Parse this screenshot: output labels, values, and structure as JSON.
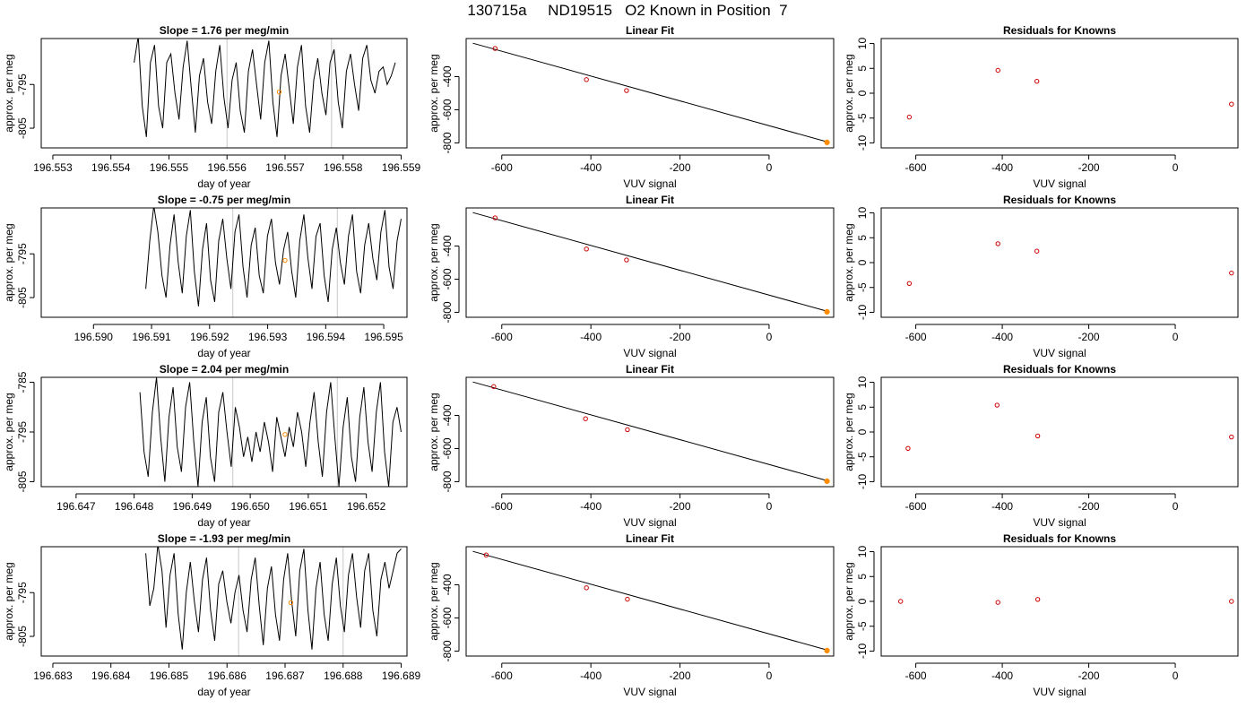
{
  "figure_title": "130715a     ND19515   O2 Known in Position  7",
  "colors": {
    "line": "#000000",
    "gridline": "#c8c8c8",
    "highlight": "#ff8c00",
    "known_points": "#cc0000",
    "axis": "#000000"
  },
  "chart_data": [
    {
      "type": "line",
      "title": "Slope =  1.76  per meg/min",
      "xlabel": "day of year",
      "ylabel": "approx. per meg",
      "xlim": [
        196.5528,
        196.5591
      ],
      "ylim": [
        -809.5,
        -784.5
      ],
      "xticks": [
        196.553,
        196.554,
        196.555,
        196.556,
        196.557,
        196.558,
        196.559
      ],
      "xtick_labels": [
        "196.553",
        "196.554",
        "196.555",
        "196.556",
        "196.557",
        "196.558",
        "196.559"
      ],
      "yticks": [
        -795,
        -805
      ],
      "ytick_labels": [
        "-795",
        "-805"
      ],
      "vlines": [
        196.556,
        196.5578
      ],
      "x_start": 196.5544,
      "x_end": 196.5589,
      "y": [
        -790,
        -784,
        -800,
        -807,
        -790,
        -786,
        -800,
        -805,
        -790,
        -788,
        -797,
        -803,
        -791,
        -785,
        -796,
        -806,
        -793,
        -789,
        -799,
        -804,
        -792,
        -786,
        -798,
        -805,
        -794,
        -790,
        -801,
        -806,
        -792,
        -787,
        -795,
        -803,
        -790,
        -785,
        -799,
        -807,
        -793,
        -788,
        -796,
        -804,
        -791,
        -786,
        -800,
        -806,
        -794,
        -789,
        -797,
        -802,
        -790,
        -787,
        -799,
        -805,
        -792,
        -788,
        -795,
        -801,
        -789,
        -786,
        -794,
        -797,
        -792,
        -791,
        -795,
        -793,
        -790
      ],
      "highlight_point": {
        "x": 196.5569,
        "y": -796.7
      }
    },
    {
      "type": "scatter",
      "title": "Linear Fit",
      "xlabel": "VUV signal",
      "ylabel": "approx. per meg",
      "xlim": [
        -680,
        145
      ],
      "ylim": [
        -830,
        -170
      ],
      "xticks": [
        -600,
        -400,
        -200,
        0
      ],
      "xtick_labels": [
        "-600",
        "-400",
        "-200",
        "0"
      ],
      "yticks": [
        -400,
        -600,
        -800
      ],
      "ytick_labels": [
        "-400",
        "-600",
        "-800"
      ],
      "fit_line": {
        "x": [
          -665,
          132
        ],
        "y": [
          -198,
          -795
        ]
      },
      "points": {
        "x": [
          -615,
          -410,
          -320,
          130
        ],
        "y": [
          -230,
          -418,
          -484,
          -797
        ]
      },
      "highlight_point": {
        "x": 130,
        "y": -797
      }
    },
    {
      "type": "scatter",
      "title": "Residuals for Knowns",
      "xlabel": "VUV signal",
      "ylabel": "approx. per meg",
      "xlim": [
        -680,
        145
      ],
      "ylim": [
        -11,
        11
      ],
      "xticks": [
        -600,
        -400,
        -200,
        0
      ],
      "xtick_labels": [
        "-600",
        "-400",
        "-200",
        "0"
      ],
      "yticks": [
        10,
        5,
        0,
        -5,
        -10
      ],
      "ytick_labels": [
        "10",
        "5",
        "0",
        "-5",
        "-10"
      ],
      "points": {
        "x": [
          -615,
          -410,
          -320,
          130
        ],
        "y": [
          -4.8,
          4.6,
          2.4,
          -2.2
        ]
      }
    },
    {
      "type": "line",
      "title": "Slope =  -0.75  per meg/min",
      "xlabel": "day of year",
      "ylabel": "approx. per meg",
      "xlim": [
        196.5891,
        196.5954
      ],
      "ylim": [
        -809.5,
        -784.5
      ],
      "xticks": [
        196.59,
        196.591,
        196.592,
        196.593,
        196.594,
        196.595
      ],
      "xtick_labels": [
        "196.590",
        "196.591",
        "196.592",
        "196.593",
        "196.594",
        "196.595"
      ],
      "yticks": [
        -795,
        -805
      ],
      "ytick_labels": [
        "-795",
        "-805"
      ],
      "vlines": [
        196.5924,
        196.5942
      ],
      "x_start": 196.5909,
      "x_end": 196.5953,
      "y": [
        -803,
        -792,
        -784,
        -790,
        -800,
        -805,
        -793,
        -786,
        -797,
        -804,
        -791,
        -785,
        -799,
        -807,
        -794,
        -788,
        -801,
        -806,
        -792,
        -787,
        -796,
        -803,
        -790,
        -786,
        -798,
        -805,
        -793,
        -789,
        -800,
        -804,
        -791,
        -787,
        -797,
        -802,
        -794,
        -790,
        -799,
        -805,
        -792,
        -786,
        -796,
        -803,
        -791,
        -788,
        -800,
        -806,
        -794,
        -789,
        -797,
        -802,
        -791,
        -786,
        -799,
        -804,
        -793,
        -788,
        -796,
        -801,
        -790,
        -785,
        -798,
        -803,
        -792,
        -787
      ],
      "highlight_point": {
        "x": 196.5933,
        "y": -796.5
      }
    },
    {
      "type": "scatter",
      "title": "Linear Fit",
      "xlabel": "VUV signal",
      "ylabel": "approx. per meg",
      "xlim": [
        -680,
        145
      ],
      "ylim": [
        -830,
        -170
      ],
      "xticks": [
        -600,
        -400,
        -200,
        0
      ],
      "xtick_labels": [
        "-600",
        "-400",
        "-200",
        "0"
      ],
      "yticks": [
        -400,
        -600,
        -800
      ],
      "ytick_labels": [
        "-400",
        "-600",
        "-800"
      ],
      "fit_line": {
        "x": [
          -665,
          132
        ],
        "y": [
          -198,
          -795
        ]
      },
      "points": {
        "x": [
          -615,
          -410,
          -320,
          130
        ],
        "y": [
          -230,
          -418,
          -484,
          -797
        ]
      },
      "highlight_point": {
        "x": 130,
        "y": -797
      }
    },
    {
      "type": "scatter",
      "title": "Residuals for Knowns",
      "xlabel": "VUV signal",
      "ylabel": "approx. per meg",
      "xlim": [
        -680,
        145
      ],
      "ylim": [
        -11,
        11
      ],
      "xticks": [
        -600,
        -400,
        -200,
        0
      ],
      "xtick_labels": [
        "-600",
        "-400",
        "-200",
        "0"
      ],
      "yticks": [
        10,
        5,
        0,
        -5,
        -10
      ],
      "ytick_labels": [
        "10",
        "5",
        "0",
        "-5",
        "-10"
      ],
      "points": {
        "x": [
          -615,
          -410,
          -320,
          130
        ],
        "y": [
          -4.2,
          3.8,
          2.3,
          -2.1
        ]
      }
    },
    {
      "type": "line",
      "title": "Slope =  2.04  per meg/min",
      "xlabel": "day of year",
      "ylabel": "approx. per meg",
      "xlim": [
        196.6464,
        196.6527
      ],
      "ylim": [
        -806,
        -784
      ],
      "xticks": [
        196.647,
        196.648,
        196.649,
        196.65,
        196.651,
        196.652
      ],
      "xtick_labels": [
        "196.647",
        "196.648",
        "196.649",
        "196.650",
        "196.651",
        "196.652"
      ],
      "yticks": [
        -785,
        -795,
        -805
      ],
      "ytick_labels": [
        "-785",
        "-795",
        "-805"
      ],
      "vlines": [
        196.6497,
        196.6515
      ],
      "x_start": 196.6481,
      "x_end": 196.6526,
      "y": [
        -787,
        -799,
        -804,
        -791,
        -784,
        -796,
        -805,
        -792,
        -786,
        -798,
        -803,
        -790,
        -785,
        -797,
        -806,
        -793,
        -788,
        -800,
        -805,
        -791,
        -787,
        -795,
        -802,
        -790,
        -794,
        -800,
        -796,
        -801,
        -795,
        -799,
        -793,
        -797,
        -803,
        -792,
        -796,
        -800,
        -794,
        -798,
        -791,
        -795,
        -802,
        -793,
        -787,
        -797,
        -804,
        -791,
        -785,
        -796,
        -806,
        -794,
        -788,
        -800,
        -805,
        -792,
        -786,
        -797,
        -803,
        -791,
        -785,
        -799,
        -806,
        -793,
        -790,
        -795
      ],
      "highlight_point": {
        "x": 196.6506,
        "y": -795.5
      }
    },
    {
      "type": "scatter",
      "title": "Linear Fit",
      "xlabel": "VUV signal",
      "ylabel": "approx. per meg",
      "xlim": [
        -680,
        145
      ],
      "ylim": [
        -830,
        -170
      ],
      "xticks": [
        -600,
        -400,
        -200,
        0
      ],
      "xtick_labels": [
        "-600",
        "-400",
        "-200",
        "0"
      ],
      "yticks": [
        -400,
        -600,
        -800
      ],
      "ytick_labels": [
        "-400",
        "-600",
        "-800"
      ],
      "fit_line": {
        "x": [
          -665,
          132
        ],
        "y": [
          -198,
          -795
        ]
      },
      "points": {
        "x": [
          -618,
          -412,
          -318,
          130
        ],
        "y": [
          -226,
          -420,
          -486,
          -797
        ]
      },
      "highlight_point": {
        "x": 130,
        "y": -797
      }
    },
    {
      "type": "scatter",
      "title": "Residuals for Knowns",
      "xlabel": "VUV signal",
      "ylabel": "approx. per meg",
      "xlim": [
        -680,
        145
      ],
      "ylim": [
        -11,
        11
      ],
      "xticks": [
        -600,
        -400,
        -200,
        0
      ],
      "xtick_labels": [
        "-600",
        "-400",
        "-200",
        "0"
      ],
      "yticks": [
        10,
        5,
        0,
        -5,
        -10
      ],
      "ytick_labels": [
        "10",
        "5",
        "0",
        "-5",
        "-10"
      ],
      "points": {
        "x": [
          -618,
          -412,
          -318,
          130
        ],
        "y": [
          -3.3,
          5.4,
          -0.8,
          -1.0
        ]
      }
    },
    {
      "type": "line",
      "title": "Slope =  -1.93  per meg/min",
      "xlabel": "day of year",
      "ylabel": "approx. per meg",
      "xlim": [
        196.6828,
        196.6891
      ],
      "ylim": [
        -809.5,
        -784.5
      ],
      "xticks": [
        196.683,
        196.684,
        196.685,
        196.686,
        196.687,
        196.688,
        196.689
      ],
      "xtick_labels": [
        "196.683",
        "196.684",
        "196.685",
        "196.686",
        "196.687",
        "196.688",
        "196.689"
      ],
      "yticks": [
        -795,
        -805
      ],
      "ytick_labels": [
        "-795",
        "-805"
      ],
      "vlines": [
        196.6862,
        196.688
      ],
      "x_start": 196.6846,
      "x_end": 196.689,
      "y": [
        -786,
        -798,
        -794,
        -784,
        -790,
        -803,
        -791,
        -786,
        -800,
        -808,
        -795,
        -788,
        -797,
        -804,
        -792,
        -787,
        -799,
        -806,
        -793,
        -790,
        -797,
        -802,
        -795,
        -791,
        -799,
        -804,
        -792,
        -787,
        -798,
        -807,
        -794,
        -789,
        -800,
        -806,
        -792,
        -786,
        -797,
        -805,
        -790,
        -785,
        -799,
        -808,
        -794,
        -788,
        -800,
        -806,
        -793,
        -787,
        -798,
        -804,
        -791,
        -786,
        -796,
        -803,
        -790,
        -786,
        -799,
        -805,
        -792,
        -788,
        -794,
        -790,
        -786,
        -785
      ],
      "highlight_point": {
        "x": 196.6871,
        "y": -797.3
      }
    },
    {
      "type": "scatter",
      "title": "Linear Fit",
      "xlabel": "VUV signal",
      "ylabel": "approx. per meg",
      "xlim": [
        -680,
        145
      ],
      "ylim": [
        -830,
        -170
      ],
      "xticks": [
        -600,
        -400,
        -200,
        0
      ],
      "xtick_labels": [
        "-600",
        "-400",
        "-200",
        "0"
      ],
      "yticks": [
        -400,
        -600,
        -800
      ],
      "ytick_labels": [
        "-400",
        "-600",
        "-800"
      ],
      "fit_line": {
        "x": [
          -665,
          132
        ],
        "y": [
          -198,
          -795
        ]
      },
      "points": {
        "x": [
          -635,
          -410,
          -318,
          130
        ],
        "y": [
          -220,
          -418,
          -487,
          -797
        ]
      },
      "highlight_point": {
        "x": 130,
        "y": -797
      }
    },
    {
      "type": "scatter",
      "title": "Residuals for Knowns",
      "xlabel": "VUV signal",
      "ylabel": "approx. per meg",
      "xlim": [
        -680,
        145
      ],
      "ylim": [
        -11,
        11
      ],
      "xticks": [
        -600,
        -400,
        -200,
        0
      ],
      "xtick_labels": [
        "-600",
        "-400",
        "-200",
        "0"
      ],
      "yticks": [
        10,
        5,
        0,
        -5,
        -10
      ],
      "ytick_labels": [
        "10",
        "5",
        "0",
        "-5",
        "-10"
      ],
      "points": {
        "x": [
          -635,
          -410,
          -318,
          130
        ],
        "y": [
          0.0,
          -0.2,
          0.4,
          0.0
        ]
      }
    }
  ]
}
